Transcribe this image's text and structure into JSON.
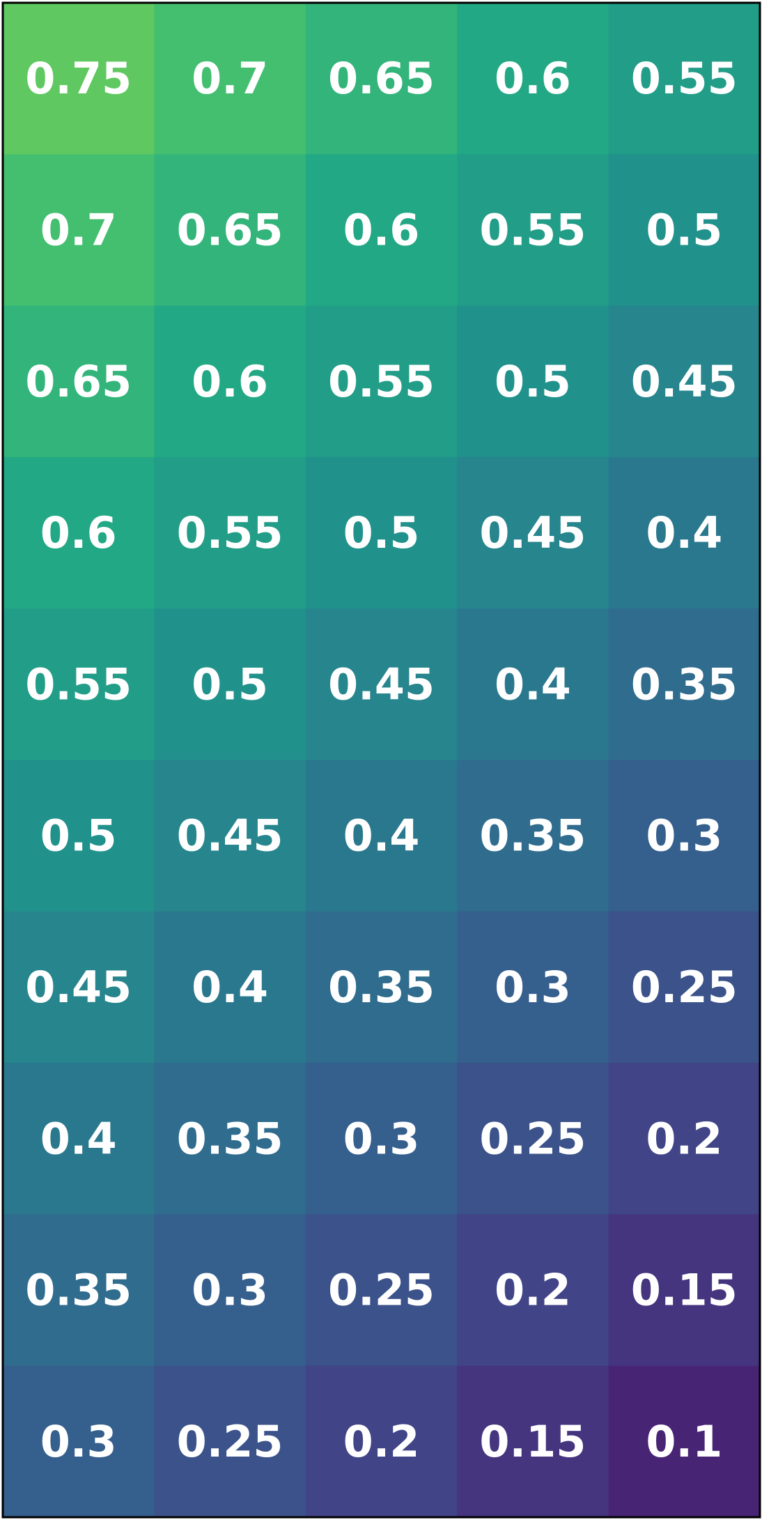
{
  "chart_data": {
    "type": "heatmap",
    "title": "",
    "xlabel": "",
    "ylabel": "",
    "colormap": "viridis",
    "value_range": [
      0.0,
      1.0
    ],
    "label_color": "#ffffff",
    "border_color": "#000000",
    "rows": 10,
    "cols": 5,
    "values": [
      [
        0.75,
        0.7,
        0.65,
        0.6,
        0.55
      ],
      [
        0.7,
        0.65,
        0.6,
        0.55,
        0.5
      ],
      [
        0.65,
        0.6,
        0.55,
        0.5,
        0.45
      ],
      [
        0.6,
        0.55,
        0.5,
        0.45,
        0.4
      ],
      [
        0.55,
        0.5,
        0.45,
        0.4,
        0.35
      ],
      [
        0.5,
        0.45,
        0.4,
        0.35,
        0.3
      ],
      [
        0.45,
        0.4,
        0.35,
        0.3,
        0.25
      ],
      [
        0.4,
        0.35,
        0.3,
        0.25,
        0.2
      ],
      [
        0.35,
        0.3,
        0.25,
        0.2,
        0.15
      ],
      [
        0.3,
        0.25,
        0.2,
        0.15,
        0.1
      ]
    ],
    "labels": [
      [
        "0.75",
        "0.7",
        "0.65",
        "0.6",
        "0.55"
      ],
      [
        "0.7",
        "0.65",
        "0.6",
        "0.55",
        "0.5"
      ],
      [
        "0.65",
        "0.6",
        "0.55",
        "0.5",
        "0.45"
      ],
      [
        "0.6",
        "0.55",
        "0.5",
        "0.45",
        "0.4"
      ],
      [
        "0.55",
        "0.5",
        "0.45",
        "0.4",
        "0.35"
      ],
      [
        "0.5",
        "0.45",
        "0.4",
        "0.35",
        "0.3"
      ],
      [
        "0.45",
        "0.4",
        "0.35",
        "0.3",
        "0.25"
      ],
      [
        "0.4",
        "0.35",
        "0.3",
        "0.25",
        "0.2"
      ],
      [
        "0.35",
        "0.3",
        "0.25",
        "0.2",
        "0.15"
      ],
      [
        "0.3",
        "0.25",
        "0.2",
        "0.15",
        "0.1"
      ]
    ],
    "grid": false,
    "legend": "none"
  }
}
